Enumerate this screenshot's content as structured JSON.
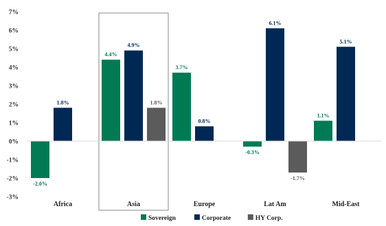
{
  "chart_data": {
    "type": "bar",
    "categories": [
      "Africa",
      "Asia",
      "Europe",
      "Lat Am",
      "Mid-East"
    ],
    "series": [
      {
        "name": "Sovereign",
        "values": [
          -2.0,
          4.4,
          3.7,
          -0.3,
          1.1
        ],
        "color": "#007A53",
        "labels": [
          "-2.0%",
          "4.4%",
          "3.7%",
          "-0.3%",
          "1.1%"
        ]
      },
      {
        "name": "Corporate",
        "values": [
          1.8,
          4.9,
          0.8,
          6.1,
          5.1
        ],
        "color": "#002855",
        "labels": [
          "1.8%",
          "4.9%",
          "0.8%",
          "6.1%",
          "5.1%"
        ]
      },
      {
        "name": "HY Corp.",
        "values": [
          null,
          1.8,
          null,
          -1.7,
          null
        ],
        "color": "#5B5B5B",
        "labels": [
          "",
          "1.8%",
          "",
          "-1.7%",
          ""
        ]
      }
    ],
    "ylim": [
      -3,
      7
    ],
    "yticks": [
      -3,
      -2,
      -1,
      0,
      1,
      2,
      3,
      4,
      5,
      6,
      7
    ],
    "ytick_labels": [
      "-3%",
      "-2%",
      "-1%",
      "0%",
      "1%",
      "2%",
      "3%",
      "4%",
      "5%",
      "6%",
      "7%"
    ],
    "highlighted_category": "Asia",
    "legend_position": "bottom",
    "title": "",
    "xlabel": "",
    "ylabel": "",
    "grid": false
  }
}
